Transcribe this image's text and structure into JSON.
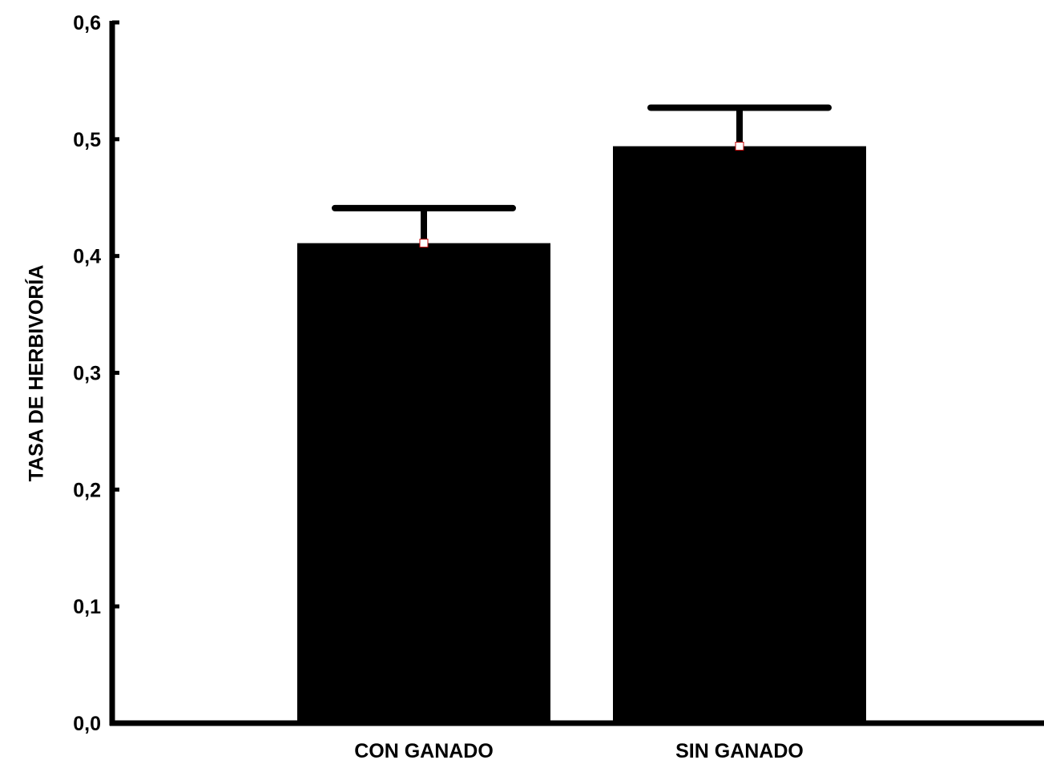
{
  "chart_data": {
    "type": "bar",
    "title": "",
    "xlabel": "",
    "ylabel": "TASA DE HERBIVORÍA",
    "categories": [
      "CON GANADO",
      "SIN GANADO"
    ],
    "values": [
      0.411,
      0.494
    ],
    "error_upper": [
      0.441,
      0.527
    ],
    "ylim": [
      0.0,
      0.6
    ],
    "yticks": [
      0.0,
      0.1,
      0.2,
      0.3,
      0.4,
      0.5,
      0.6
    ],
    "ytick_labels": [
      "0,0",
      "0,1",
      "0,2",
      "0,3",
      "0,4",
      "0,5",
      "0,6"
    ],
    "grid": false,
    "colors": {
      "bar": "#000000",
      "axis": "#000000",
      "mean_marker_fill": "#ffffff",
      "mean_marker_stroke": "#c00000"
    }
  }
}
